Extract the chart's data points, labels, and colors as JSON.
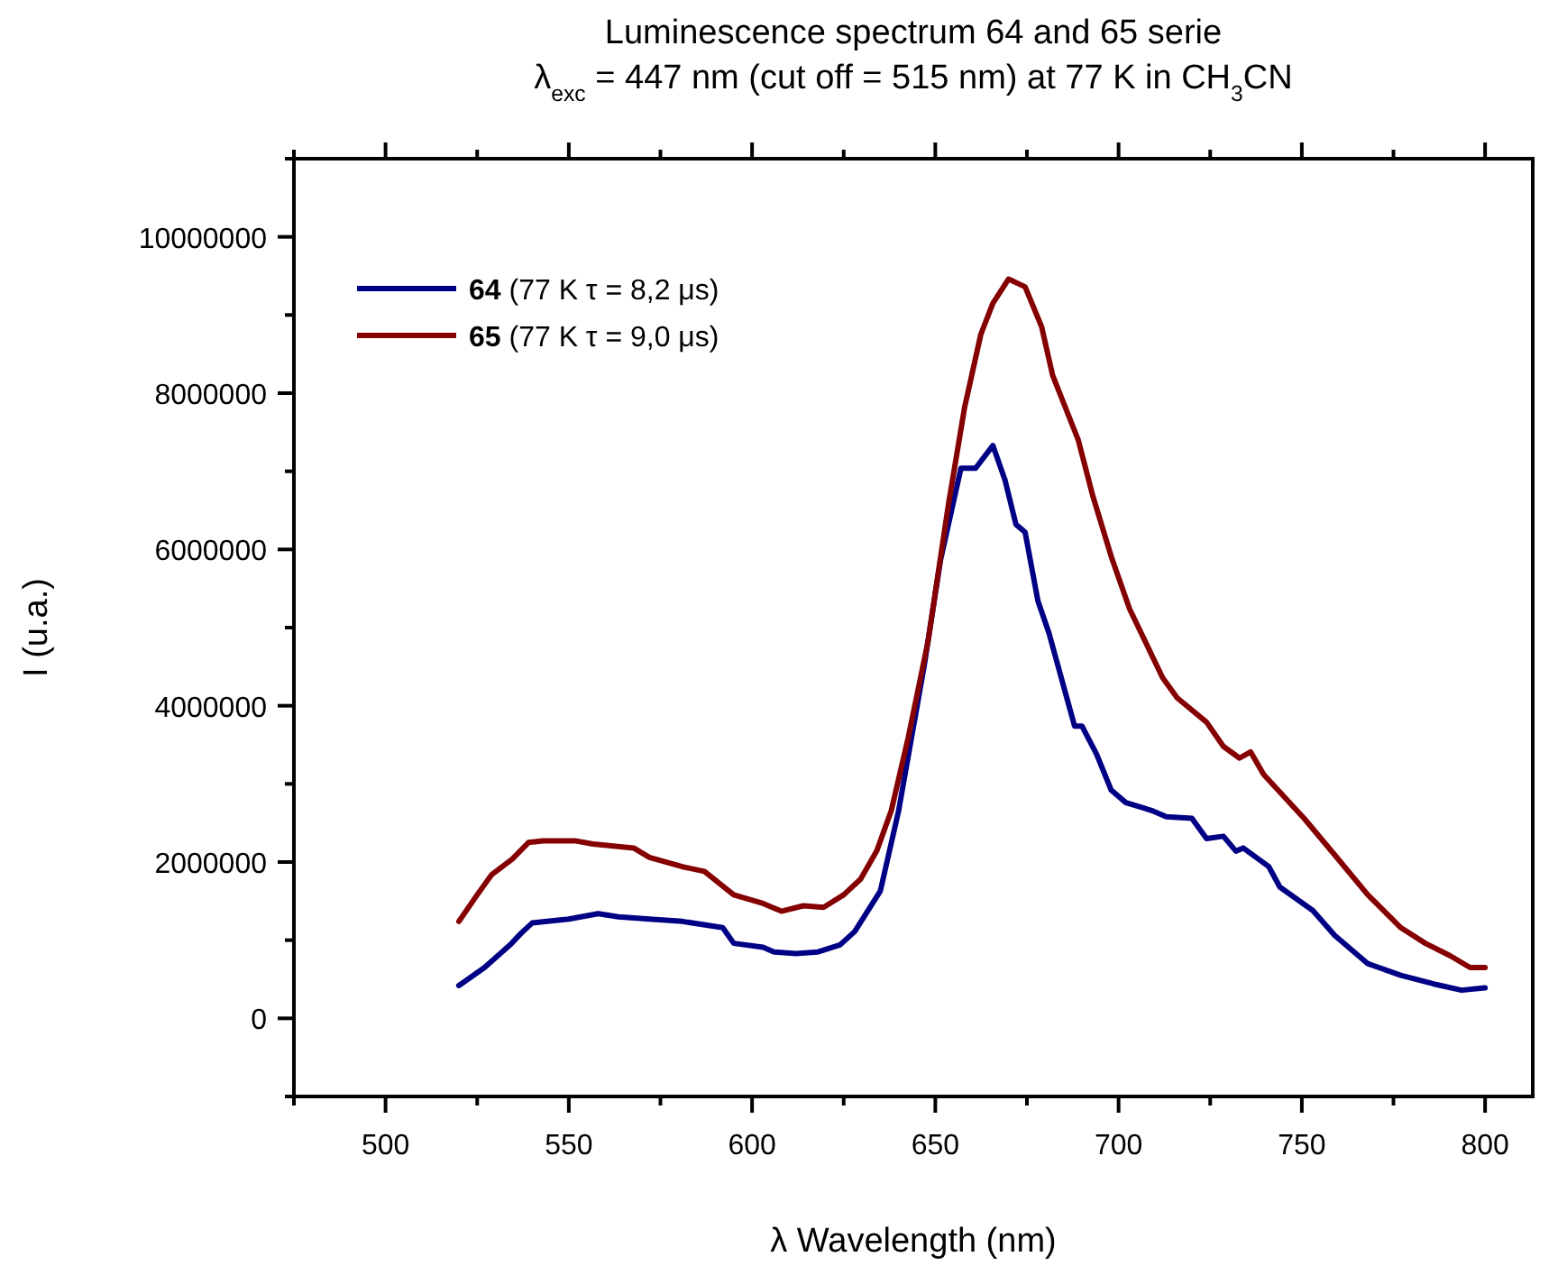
{
  "chart_data": {
    "type": "line",
    "title": "Luminescence spectrum 64 and 65 serie",
    "subtitle": "λ$_{exc}$ = 447 nm (cut off = 515 nm) at 77 K in CH$_{3}$CN",
    "xlabel": "λ Wavelength (nm)",
    "ylabel": "I (u.a.)",
    "xlim": [
      475,
      813
    ],
    "ylim": [
      -1000000,
      11000000
    ],
    "xticks": [
      {
        "value": 475,
        "label": null
      },
      500,
      {
        "value": 525,
        "label": null
      },
      550,
      {
        "value": 575,
        "label": null
      },
      600,
      {
        "value": 625,
        "label": null
      },
      650,
      {
        "value": 675,
        "label": null
      },
      700,
      {
        "value": 725,
        "label": null
      },
      750,
      {
        "value": 775,
        "label": null
      },
      800
    ],
    "yticks": [
      {
        "value": -1000000,
        "label": null
      },
      0,
      {
        "value": 1000000,
        "label": null
      },
      2000000,
      {
        "value": 3000000,
        "label": null
      },
      4000000,
      {
        "value": 5000000,
        "label": null
      },
      6000000,
      {
        "value": 7000000,
        "label": null
      },
      8000000,
      {
        "value": 9000000,
        "label": null
      },
      10000000,
      {
        "value": 11000000,
        "label": null
      }
    ],
    "grid": false,
    "legend": "top left",
    "line_style": "solid",
    "series": [
      {
        "name": "64 (77 K τ = 8,2 μs)",
        "color": "#000085",
        "x": [
          520,
          527,
          534,
          537,
          540,
          550,
          558,
          563.5,
          572,
          581,
          592,
          595,
          603,
          606,
          612,
          618,
          624,
          628,
          635,
          640,
          647,
          651.4,
          657,
          661,
          665.7,
          669,
          672,
          674.5,
          678,
          681,
          688,
          690,
          694,
          698,
          702,
          709,
          713,
          720,
          724,
          728.6,
          732,
          734,
          741,
          744,
          753,
          759,
          768,
          777,
          786,
          793.6,
          800
        ],
        "values": [
          420000,
          650000,
          940000,
          1090000,
          1220000,
          1270000,
          1340000,
          1300000,
          1270000,
          1240000,
          1160000,
          960000,
          910000,
          850000,
          830000,
          850000,
          940000,
          1110000,
          1630000,
          2660000,
          4520000,
          5860000,
          7040000,
          7040000,
          7330000,
          6890000,
          6320000,
          6220000,
          5340000,
          4930000,
          3740000,
          3740000,
          3380000,
          2920000,
          2760000,
          2660000,
          2580000,
          2560000,
          2300000,
          2330000,
          2140000,
          2180000,
          1940000,
          1680000,
          1380000,
          1060000,
          700000,
          550000,
          440000,
          360000,
          390000
        ]
      },
      {
        "name": "65 (77 K τ = 9,0 μs)",
        "color": "#850000",
        "x": [
          520,
          525,
          529,
          534.6,
          539,
          543,
          552,
          556.6,
          567.7,
          572,
          581,
          587,
          595,
          603,
          608,
          614,
          619.5,
          625,
          629.6,
          634,
          638,
          642.6,
          648,
          653.6,
          658,
          662.4,
          665.7,
          670,
          674.5,
          679,
          682,
          689,
          693,
          698,
          703,
          712,
          716,
          724,
          728.6,
          733,
          736,
          739.6,
          750.6,
          759,
          768,
          777,
          783.7,
          790.5,
          795.9,
          800
        ],
        "values": [
          1240000,
          1580000,
          1840000,
          2040000,
          2250000,
          2270000,
          2270000,
          2230000,
          2180000,
          2060000,
          1940000,
          1880000,
          1580000,
          1470000,
          1370000,
          1440000,
          1420000,
          1580000,
          1780000,
          2140000,
          2660000,
          3590000,
          4820000,
          6580000,
          7820000,
          8750000,
          9150000,
          9460000,
          9360000,
          8850000,
          8230000,
          7400000,
          6680000,
          5910000,
          5240000,
          4360000,
          4100000,
          3790000,
          3480000,
          3330000,
          3410000,
          3120000,
          2560000,
          2090000,
          1580000,
          1160000,
          960000,
          800000,
          650000,
          650000
        ]
      }
    ]
  }
}
